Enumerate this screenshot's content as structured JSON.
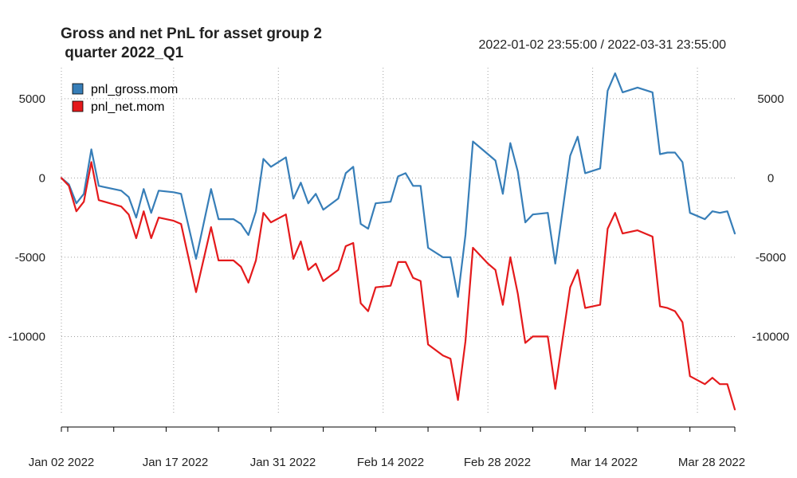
{
  "chart_data": {
    "type": "line",
    "title_lines": [
      "Gross and net PnL for asset group 2",
      " quarter 2022_Q1"
    ],
    "date_range": "2022-01-02 23:55:00 / 2022-03-31 23:55:00",
    "x_ticks": [
      "Jan 02 2022",
      "Jan 17 2022",
      "Jan 31 2022",
      "Feb 14 2022",
      "Feb 28 2022",
      "Mar 14 2022",
      "Mar 28 2022"
    ],
    "y_ticks": [
      5000,
      0,
      -5000,
      -10000
    ],
    "y_tick_labels": [
      "5000",
      "0",
      "-5000",
      "-10000"
    ],
    "ylim": [
      -14800,
      6700
    ],
    "xlim": [
      "2022-01-02",
      "2022-03-31"
    ],
    "grid": true,
    "legend_position": "top-left",
    "series": [
      {
        "name": "pnl_gross.mom",
        "color": "#377eb8",
        "points": [
          [
            "2022-01-02",
            0
          ],
          [
            "2022-01-03",
            -400
          ],
          [
            "2022-01-04",
            -1600
          ],
          [
            "2022-01-05",
            -1000
          ],
          [
            "2022-01-06",
            1800
          ],
          [
            "2022-01-07",
            -500
          ],
          [
            "2022-01-10",
            -800
          ],
          [
            "2022-01-11",
            -1200
          ],
          [
            "2022-01-12",
            -2500
          ],
          [
            "2022-01-13",
            -700
          ],
          [
            "2022-01-14",
            -2200
          ],
          [
            "2022-01-15",
            -800
          ],
          [
            "2022-01-17",
            -900
          ],
          [
            "2022-01-18",
            -1000
          ],
          [
            "2022-01-20",
            -5100
          ],
          [
            "2022-01-22",
            -700
          ],
          [
            "2022-01-23",
            -2600
          ],
          [
            "2022-01-25",
            -2600
          ],
          [
            "2022-01-26",
            -2900
          ],
          [
            "2022-01-27",
            -3600
          ],
          [
            "2022-01-28",
            -2100
          ],
          [
            "2022-01-29",
            1200
          ],
          [
            "2022-01-30",
            700
          ],
          [
            "2022-02-01",
            1300
          ],
          [
            "2022-02-02",
            -1300
          ],
          [
            "2022-02-03",
            -300
          ],
          [
            "2022-02-04",
            -1600
          ],
          [
            "2022-02-05",
            -1000
          ],
          [
            "2022-02-06",
            -2000
          ],
          [
            "2022-02-08",
            -1300
          ],
          [
            "2022-02-09",
            300
          ],
          [
            "2022-02-10",
            700
          ],
          [
            "2022-02-11",
            -2900
          ],
          [
            "2022-02-12",
            -3200
          ],
          [
            "2022-02-13",
            -1600
          ],
          [
            "2022-02-15",
            -1500
          ],
          [
            "2022-02-16",
            100
          ],
          [
            "2022-02-17",
            300
          ],
          [
            "2022-02-18",
            -500
          ],
          [
            "2022-02-19",
            -500
          ],
          [
            "2022-02-20",
            -4400
          ],
          [
            "2022-02-22",
            -5000
          ],
          [
            "2022-02-23",
            -5000
          ],
          [
            "2022-02-24",
            -7500
          ],
          [
            "2022-02-25",
            -3600
          ],
          [
            "2022-02-26",
            2300
          ],
          [
            "2022-02-28",
            1500
          ],
          [
            "2022-03-01",
            1100
          ],
          [
            "2022-03-02",
            -1000
          ],
          [
            "2022-03-03",
            2200
          ],
          [
            "2022-03-04",
            400
          ],
          [
            "2022-03-05",
            -2800
          ],
          [
            "2022-03-06",
            -2300
          ],
          [
            "2022-03-08",
            -2200
          ],
          [
            "2022-03-09",
            -5400
          ],
          [
            "2022-03-11",
            1400
          ],
          [
            "2022-03-12",
            2600
          ],
          [
            "2022-03-13",
            300
          ],
          [
            "2022-03-15",
            600
          ],
          [
            "2022-03-16",
            5500
          ],
          [
            "2022-03-17",
            6600
          ],
          [
            "2022-03-18",
            5400
          ],
          [
            "2022-03-20",
            5700
          ],
          [
            "2022-03-22",
            5400
          ],
          [
            "2022-03-23",
            1500
          ],
          [
            "2022-03-24",
            1600
          ],
          [
            "2022-03-25",
            1600
          ],
          [
            "2022-03-26",
            1000
          ],
          [
            "2022-03-27",
            -2200
          ],
          [
            "2022-03-29",
            -2600
          ],
          [
            "2022-03-30",
            -2100
          ],
          [
            "2022-03-31",
            -2200
          ],
          [
            "2022-03-32",
            -2100
          ],
          [
            "2022-03-33",
            -3500
          ]
        ]
      },
      {
        "name": "pnl_net.mom",
        "color": "#e41a1c",
        "points": [
          [
            "2022-01-02",
            0
          ],
          [
            "2022-01-03",
            -500
          ],
          [
            "2022-01-04",
            -2100
          ],
          [
            "2022-01-05",
            -1500
          ],
          [
            "2022-01-06",
            1000
          ],
          [
            "2022-01-07",
            -1400
          ],
          [
            "2022-01-10",
            -1800
          ],
          [
            "2022-01-11",
            -2300
          ],
          [
            "2022-01-12",
            -3800
          ],
          [
            "2022-01-13",
            -2100
          ],
          [
            "2022-01-14",
            -3800
          ],
          [
            "2022-01-15",
            -2500
          ],
          [
            "2022-01-17",
            -2700
          ],
          [
            "2022-01-18",
            -2900
          ],
          [
            "2022-01-20",
            -7200
          ],
          [
            "2022-01-22",
            -3100
          ],
          [
            "2022-01-23",
            -5200
          ],
          [
            "2022-01-25",
            -5200
          ],
          [
            "2022-01-26",
            -5600
          ],
          [
            "2022-01-27",
            -6600
          ],
          [
            "2022-01-28",
            -5200
          ],
          [
            "2022-01-29",
            -2200
          ],
          [
            "2022-01-30",
            -2800
          ],
          [
            "2022-02-01",
            -2300
          ],
          [
            "2022-02-02",
            -5100
          ],
          [
            "2022-02-03",
            -4000
          ],
          [
            "2022-02-04",
            -5800
          ],
          [
            "2022-02-05",
            -5400
          ],
          [
            "2022-02-06",
            -6500
          ],
          [
            "2022-02-08",
            -5800
          ],
          [
            "2022-02-09",
            -4300
          ],
          [
            "2022-02-10",
            -4100
          ],
          [
            "2022-02-11",
            -7900
          ],
          [
            "2022-02-12",
            -8400
          ],
          [
            "2022-02-13",
            -6900
          ],
          [
            "2022-02-15",
            -6800
          ],
          [
            "2022-02-16",
            -5300
          ],
          [
            "2022-02-17",
            -5300
          ],
          [
            "2022-02-18",
            -6300
          ],
          [
            "2022-02-19",
            -6500
          ],
          [
            "2022-02-20",
            -10500
          ],
          [
            "2022-02-22",
            -11200
          ],
          [
            "2022-02-23",
            -11400
          ],
          [
            "2022-02-24",
            -14000
          ],
          [
            "2022-02-25",
            -10300
          ],
          [
            "2022-02-26",
            -4400
          ],
          [
            "2022-02-28",
            -5400
          ],
          [
            "2022-03-01",
            -5800
          ],
          [
            "2022-03-02",
            -8000
          ],
          [
            "2022-03-03",
            -5000
          ],
          [
            "2022-03-04",
            -7300
          ],
          [
            "2022-03-05",
            -10400
          ],
          [
            "2022-03-06",
            -10000
          ],
          [
            "2022-03-08",
            -10000
          ],
          [
            "2022-03-09",
            -13300
          ],
          [
            "2022-03-11",
            -6900
          ],
          [
            "2022-03-12",
            -5800
          ],
          [
            "2022-03-13",
            -8200
          ],
          [
            "2022-03-15",
            -8000
          ],
          [
            "2022-03-16",
            -3200
          ],
          [
            "2022-03-17",
            -2200
          ],
          [
            "2022-03-18",
            -3500
          ],
          [
            "2022-03-20",
            -3300
          ],
          [
            "2022-03-22",
            -3700
          ],
          [
            "2022-03-23",
            -8100
          ],
          [
            "2022-03-24",
            -8200
          ],
          [
            "2022-03-25",
            -8400
          ],
          [
            "2022-03-26",
            -9100
          ],
          [
            "2022-03-27",
            -12500
          ],
          [
            "2022-03-29",
            -13000
          ],
          [
            "2022-03-30",
            -12600
          ],
          [
            "2022-03-31",
            -13000
          ],
          [
            "2022-03-32",
            -13000
          ],
          [
            "2022-03-33",
            -14600
          ]
        ]
      }
    ]
  }
}
